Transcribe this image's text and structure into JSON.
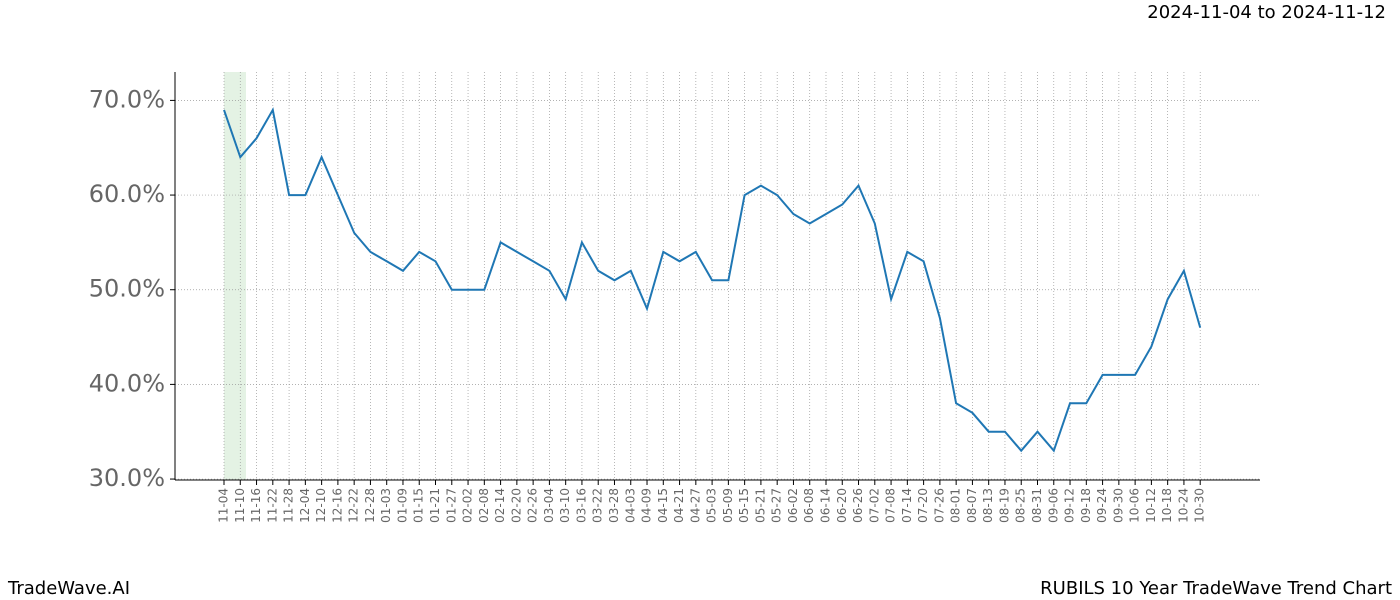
{
  "header": "2024-11-04 to 2024-11-12",
  "footer_left": "TradeWave.AI",
  "footer_right": "RUBILS 10 Year TradeWave Trend Chart",
  "chart_data": {
    "type": "line",
    "categories": [
      "11-04",
      "11-10",
      "11-16",
      "11-22",
      "11-28",
      "12-04",
      "12-10",
      "12-16",
      "12-22",
      "12-28",
      "01-03",
      "01-09",
      "01-15",
      "01-21",
      "01-27",
      "02-02",
      "02-08",
      "02-14",
      "02-20",
      "02-26",
      "03-04",
      "03-10",
      "03-16",
      "03-22",
      "03-28",
      "04-03",
      "04-09",
      "04-15",
      "04-21",
      "04-27",
      "05-03",
      "05-09",
      "05-15",
      "05-21",
      "05-27",
      "06-02",
      "06-08",
      "06-14",
      "06-20",
      "06-26",
      "07-02",
      "07-08",
      "07-14",
      "07-20",
      "07-26",
      "08-01",
      "08-07",
      "08-13",
      "08-19",
      "08-25",
      "08-31",
      "09-06",
      "09-12",
      "09-18",
      "09-24",
      "09-30",
      "10-06",
      "10-12",
      "10-18",
      "10-24",
      "10-30"
    ],
    "series": [
      {
        "name": "RUBILS",
        "color": "#1f77b4",
        "values": [
          69,
          64,
          66,
          69,
          60,
          60,
          64,
          60,
          56,
          54,
          53,
          52,
          54,
          53,
          50,
          50,
          50,
          55,
          54,
          53,
          52,
          49,
          55,
          52,
          51,
          52,
          48,
          54,
          53,
          54,
          51,
          51,
          60,
          61,
          60,
          58,
          57,
          58,
          59,
          61,
          57,
          49,
          54,
          53,
          47,
          38,
          37,
          35,
          35,
          33,
          35,
          33,
          38,
          38,
          41,
          41,
          41,
          44,
          49,
          52,
          46
        ]
      }
    ],
    "ylim": [
      29.9,
      73.0
    ],
    "yticks": [
      {
        "value": 30,
        "label": "30.0%"
      },
      {
        "value": 40,
        "label": "40.0%"
      },
      {
        "value": 50,
        "label": "50.0%"
      },
      {
        "value": 60,
        "label": "60.0%"
      },
      {
        "value": 70,
        "label": "70.0%"
      }
    ],
    "grid": true
  }
}
